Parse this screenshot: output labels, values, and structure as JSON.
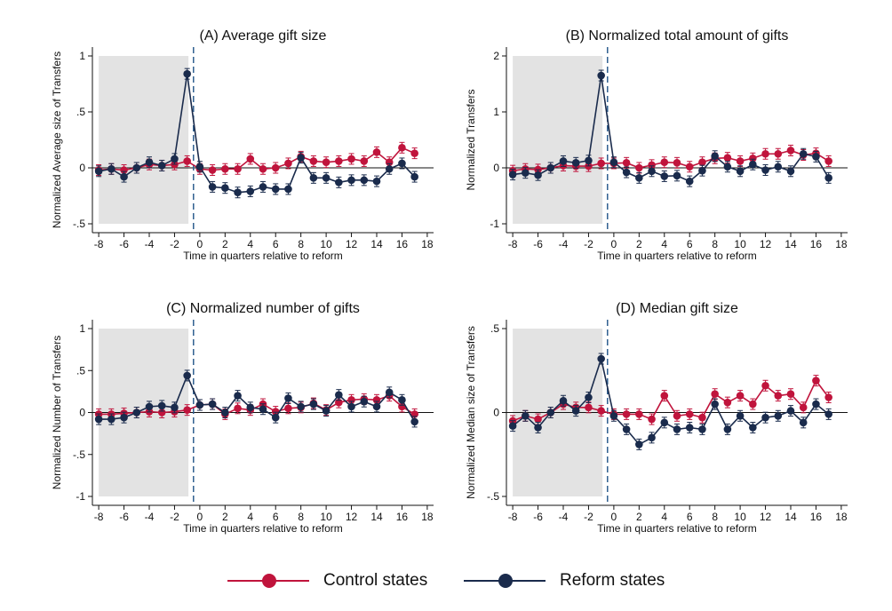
{
  "colors": {
    "control": "#c0143c",
    "reform": "#1a2b4c",
    "shade": "#e3e3e3",
    "dash": "#2f5f8f"
  },
  "legend": {
    "control_label": "Control states",
    "reform_label": "Reform states"
  },
  "chart_data": [
    {
      "type": "line",
      "title": "(A) Average gift size",
      "xlabel": "Time in quarters relative to reform",
      "ylabel": "Normalized Average size of Transfers",
      "xlim": [
        -8.5,
        18.5
      ],
      "ylim": [
        -0.5,
        1
      ],
      "xticks": [
        -8,
        -6,
        -4,
        -2,
        0,
        2,
        4,
        6,
        8,
        10,
        12,
        14,
        16,
        18
      ],
      "yticks": [
        {
          "v": -0.5,
          "label": "-.5"
        },
        {
          "v": 0,
          "label": "0"
        },
        {
          "v": 0.5,
          "label": ".5"
        },
        {
          "v": 1,
          "label": "1"
        }
      ],
      "shaded_region": [
        -8,
        -0.9
      ],
      "reform_line": -0.5,
      "x": [
        -8,
        -7,
        -6,
        -5,
        -4,
        -3,
        -2,
        -1,
        0,
        1,
        2,
        3,
        4,
        5,
        6,
        7,
        8,
        9,
        10,
        11,
        12,
        13,
        14,
        15,
        16,
        17
      ],
      "series": [
        {
          "name": "Control states",
          "values": [
            -0.02,
            -0.01,
            -0.02,
            0.0,
            0.03,
            0.02,
            0.03,
            0.06,
            -0.01,
            -0.02,
            -0.01,
            -0.01,
            0.08,
            -0.01,
            0.0,
            0.04,
            0.1,
            0.06,
            0.05,
            0.06,
            0.08,
            0.06,
            0.14,
            0.05,
            0.18,
            0.13
          ]
        },
        {
          "name": "Reform states",
          "values": [
            -0.03,
            -0.01,
            -0.08,
            0.0,
            0.05,
            0.02,
            0.08,
            0.84,
            0.01,
            -0.17,
            -0.18,
            -0.22,
            -0.21,
            -0.17,
            -0.19,
            -0.19,
            0.09,
            -0.09,
            -0.09,
            -0.13,
            -0.11,
            -0.11,
            -0.12,
            -0.01,
            0.04,
            -0.08
          ]
        }
      ]
    },
    {
      "type": "line",
      "title": "(B) Normalized total amount of gifts",
      "xlabel": "Time in quarters relative to reform",
      "ylabel": "Normalized Transfers",
      "xlim": [
        -8.5,
        18.5
      ],
      "ylim": [
        -1,
        2
      ],
      "xticks": [
        -8,
        -6,
        -4,
        -2,
        0,
        2,
        4,
        6,
        8,
        10,
        12,
        14,
        16,
        18
      ],
      "yticks": [
        {
          "v": -1,
          "label": "-1"
        },
        {
          "v": 0,
          "label": "0"
        },
        {
          "v": 1,
          "label": "1"
        },
        {
          "v": 2,
          "label": "2"
        }
      ],
      "shaded_region": [
        -8,
        -0.9
      ],
      "reform_line": -0.5,
      "x": [
        -8,
        -7,
        -6,
        -5,
        -4,
        -3,
        -2,
        -1,
        0,
        1,
        2,
        3,
        4,
        5,
        6,
        7,
        8,
        9,
        10,
        11,
        12,
        13,
        14,
        15,
        16,
        17
      ],
      "series": [
        {
          "name": "Control states",
          "values": [
            -0.05,
            -0.02,
            -0.03,
            0.0,
            0.04,
            0.03,
            0.03,
            0.08,
            0.08,
            0.09,
            0.0,
            0.05,
            0.1,
            0.09,
            0.02,
            0.1,
            0.17,
            0.18,
            0.12,
            0.17,
            0.25,
            0.25,
            0.31,
            0.23,
            0.26,
            0.12
          ]
        },
        {
          "name": "Reform states",
          "values": [
            -0.12,
            -0.09,
            -0.13,
            0.0,
            0.12,
            0.09,
            0.13,
            1.65,
            0.1,
            -0.08,
            -0.18,
            -0.06,
            -0.15,
            -0.14,
            -0.24,
            -0.05,
            0.21,
            0.02,
            -0.06,
            0.06,
            -0.04,
            0.02,
            -0.06,
            0.25,
            0.2,
            -0.18
          ]
        }
      ]
    },
    {
      "type": "line",
      "title": "(C) Normalized number of gifts",
      "xlabel": "Time in quarters relative to reform",
      "ylabel": "Normalized Number of Transfers",
      "xlim": [
        -8.5,
        18.5
      ],
      "ylim": [
        -1,
        1
      ],
      "xticks": [
        -8,
        -6,
        -4,
        -2,
        0,
        2,
        4,
        6,
        8,
        10,
        12,
        14,
        16,
        18
      ],
      "yticks": [
        {
          "v": -1,
          "label": "-1"
        },
        {
          "v": -0.5,
          "label": "-.5"
        },
        {
          "v": 0,
          "label": "0"
        },
        {
          "v": 0.5,
          "label": ".5"
        },
        {
          "v": 1,
          "label": "1"
        }
      ],
      "shaded_region": [
        -8,
        -0.9
      ],
      "reform_line": -0.5,
      "x": [
        -8,
        -7,
        -6,
        -5,
        -4,
        -3,
        -2,
        -1,
        0,
        1,
        2,
        3,
        4,
        5,
        6,
        7,
        8,
        9,
        10,
        11,
        12,
        13,
        14,
        15,
        16,
        17
      ],
      "series": [
        {
          "name": "Control states",
          "values": [
            -0.02,
            -0.02,
            -0.01,
            0.0,
            0.01,
            0.0,
            0.01,
            0.03,
            0.09,
            0.1,
            -0.02,
            0.05,
            0.03,
            0.1,
            0.01,
            0.05,
            0.06,
            0.11,
            0.03,
            0.12,
            0.15,
            0.16,
            0.15,
            0.2,
            0.07,
            -0.02
          ]
        },
        {
          "name": "Reform states",
          "values": [
            -0.08,
            -0.08,
            -0.06,
            0.0,
            0.07,
            0.08,
            0.06,
            0.44,
            0.09,
            0.1,
            0.0,
            0.2,
            0.06,
            0.04,
            -0.06,
            0.17,
            0.07,
            0.1,
            0.02,
            0.21,
            0.07,
            0.13,
            0.07,
            0.24,
            0.15,
            -0.11
          ]
        }
      ]
    },
    {
      "type": "line",
      "title": "(D) Median gift size",
      "xlabel": "Time in quarters relative to reform",
      "ylabel": "Normalized Median size of Transfers",
      "xlim": [
        -8.5,
        18.5
      ],
      "ylim": [
        -0.5,
        0.5
      ],
      "xticks": [
        -8,
        -6,
        -4,
        -2,
        0,
        2,
        4,
        6,
        8,
        10,
        12,
        14,
        16,
        18
      ],
      "yticks": [
        {
          "v": -0.5,
          "label": "-.5"
        },
        {
          "v": 0,
          "label": "0"
        },
        {
          "v": 0.5,
          "label": ".5"
        }
      ],
      "shaded_region": [
        -8,
        -0.9
      ],
      "reform_line": -0.5,
      "x": [
        -8,
        -7,
        -6,
        -5,
        -4,
        -3,
        -2,
        -1,
        0,
        1,
        2,
        3,
        4,
        5,
        6,
        7,
        8,
        9,
        10,
        11,
        12,
        13,
        14,
        15,
        16,
        17
      ],
      "series": [
        {
          "name": "Control states",
          "values": [
            -0.05,
            -0.02,
            -0.04,
            0.0,
            0.05,
            0.03,
            0.03,
            0.01,
            -0.01,
            -0.01,
            -0.01,
            -0.04,
            0.1,
            -0.02,
            -0.01,
            -0.03,
            0.11,
            0.06,
            0.1,
            0.05,
            0.16,
            0.1,
            0.11,
            0.03,
            0.19,
            0.09
          ]
        },
        {
          "name": "Reform states",
          "values": [
            -0.08,
            -0.02,
            -0.09,
            0.0,
            0.07,
            0.01,
            0.09,
            0.32,
            -0.02,
            -0.1,
            -0.19,
            -0.15,
            -0.06,
            -0.1,
            -0.09,
            -0.1,
            0.05,
            -0.1,
            -0.02,
            -0.09,
            -0.03,
            -0.02,
            0.01,
            -0.06,
            0.05,
            -0.01
          ]
        }
      ]
    }
  ]
}
